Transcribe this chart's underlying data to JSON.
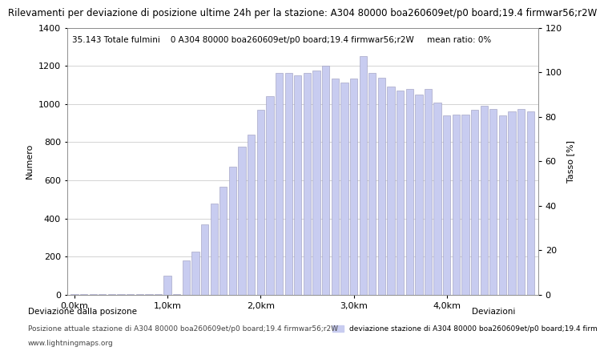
{
  "title": "Rilevamenti per deviazione di posizione ultime 24h per la stazione: A304 80000 boa260609et/p0 board;19.4 firmwar56;r2W",
  "subtitle": "35.143 Totale fulmini    0 A304 80000 boa260609et/p0 board;19.4 firmwar56;r2W     mean ratio: 0%",
  "ylabel_left": "Numero",
  "ylabel_right": "Tasso [%]",
  "legend_label": "deviazione stazione di A304 80000 boa260609et/p0 board;19.4 firm",
  "footer_left1": "Deviazione dalla posizone",
  "footer_left2": "Posizione attuale stazione di A304 80000 boa260609et/p0 board;19.4 firmwar56;r2W",
  "footer_left3": "www.lightningmaps.org",
  "footer_right": "Deviazioni",
  "bar_color": "#c8ccf0",
  "bar_edge_color": "#9999bb",
  "background_color": "#ffffff",
  "grid_color": "#cccccc",
  "ylim_left": [
    0,
    1400
  ],
  "ylim_right": [
    0,
    120
  ],
  "x_tick_labels": [
    "0,0km",
    "1,0km",
    "2,0km",
    "3,0km",
    "4,0km"
  ],
  "x_tick_positions": [
    0,
    10,
    20,
    30,
    40
  ],
  "bar_h": [
    5,
    2,
    2,
    2,
    3,
    5,
    2,
    2,
    2,
    2,
    100,
    5,
    180,
    225,
    370,
    480,
    565,
    670,
    775,
    840,
    970,
    1040,
    1165,
    1165,
    1150,
    1165,
    1175,
    1200,
    1135,
    1115,
    1135,
    1250,
    1165,
    1140,
    1090,
    1070,
    1080,
    1050,
    1080,
    1010,
    940,
    945,
    945,
    970,
    990,
    975,
    940,
    960,
    975,
    960
  ],
  "title_fontsize": 8.5,
  "axis_fontsize": 8,
  "tick_fontsize": 8,
  "subtitle_fontsize": 7.5
}
